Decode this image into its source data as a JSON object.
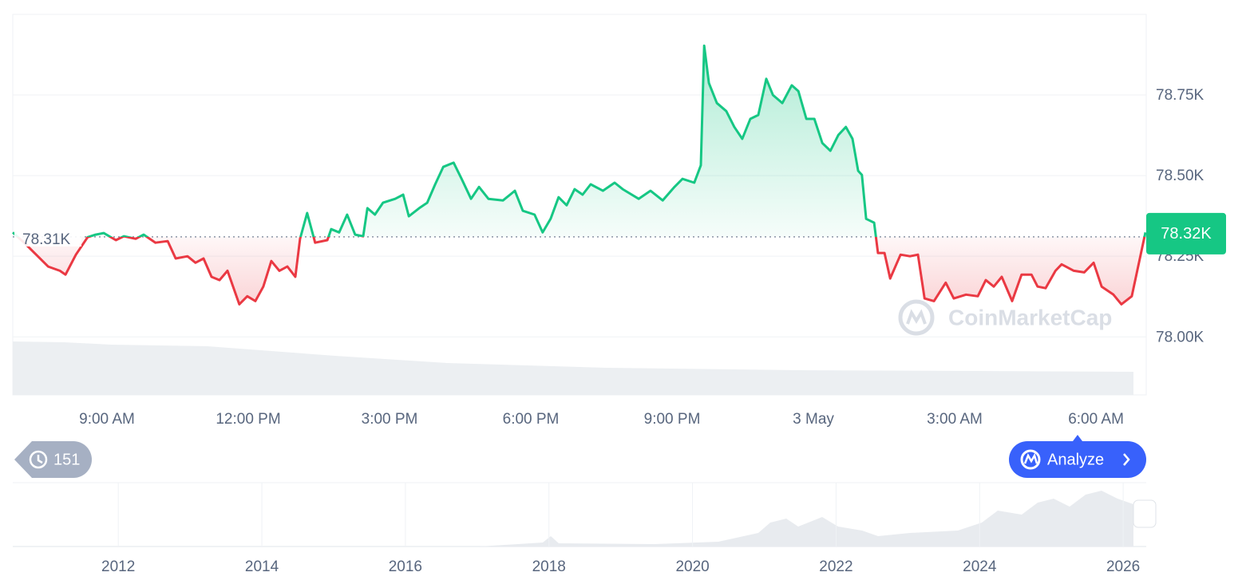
{
  "chart_data": [
    {
      "type": "line",
      "x": [
        0,
        0.24,
        0.75,
        1.0,
        1.12,
        1.34,
        1.59,
        1.76,
        1.93,
        2.19,
        2.36,
        2.61,
        2.78,
        3.03,
        3.29,
        3.46,
        3.71,
        3.88,
        4.05,
        4.22,
        4.39,
        4.56,
        4.81,
        4.98,
        5.15,
        5.32,
        5.49,
        5.66,
        5.83,
        6.0,
        6.1,
        6.25,
        6.42,
        6.68,
        6.76,
        6.93,
        7.1,
        7.27,
        7.44,
        7.53,
        7.69,
        7.86,
        8.12,
        8.29,
        8.41,
        8.63,
        8.8,
        8.97,
        9.14,
        9.36,
        9.53,
        9.73,
        9.9,
        10.1,
        10.41,
        10.66,
        10.83,
        11.08,
        11.25,
        11.42,
        11.59,
        11.76,
        11.93,
        12.1,
        12.27,
        12.53,
        12.78,
        12.95,
        13.29,
        13.54,
        13.8,
        14.05,
        14.22,
        14.47,
        14.61,
        14.68,
        14.78,
        14.95,
        15.15,
        15.32,
        15.49,
        15.66,
        15.83,
        16.0,
        16.14,
        16.34,
        16.54,
        16.68,
        16.85,
        17.02,
        17.19,
        17.36,
        17.53,
        17.69,
        17.83,
        17.95,
        18.03,
        18.12,
        18.29,
        18.37,
        18.51,
        18.63,
        18.85,
        19.05,
        19.22,
        19.36,
        19.56,
        19.81,
        19.98,
        20.24,
        20.49,
        20.66,
        20.83,
        21.0,
        21.22,
        21.42,
        21.63,
        21.76,
        21.93,
        22.14,
        22.27,
        22.53,
        22.75,
        22.95,
        23.12,
        23.37,
        23.54,
        23.76,
        24.05
      ],
      "values": [
        78.324,
        78.292,
        78.218,
        78.205,
        78.193,
        78.255,
        78.309,
        78.317,
        78.322,
        78.3,
        78.312,
        78.304,
        78.317,
        78.292,
        78.297,
        78.243,
        78.25,
        78.23,
        78.243,
        78.186,
        78.176,
        78.205,
        78.101,
        78.126,
        78.111,
        78.156,
        78.235,
        78.205,
        78.218,
        78.186,
        78.304,
        78.384,
        78.292,
        78.3,
        78.334,
        78.324,
        78.379,
        78.317,
        78.312,
        78.399,
        78.379,
        78.416,
        78.428,
        78.441,
        78.374,
        78.399,
        78.416,
        78.473,
        78.527,
        78.54,
        78.49,
        78.428,
        78.465,
        78.428,
        78.423,
        78.453,
        78.391,
        78.379,
        78.324,
        78.366,
        78.433,
        78.408,
        78.458,
        78.441,
        78.473,
        78.453,
        78.478,
        78.458,
        78.428,
        78.453,
        78.423,
        78.465,
        78.49,
        78.478,
        78.532,
        78.903,
        78.787,
        78.725,
        78.7,
        78.651,
        78.614,
        78.676,
        78.688,
        78.8,
        78.75,
        78.725,
        78.78,
        78.762,
        78.676,
        78.676,
        78.601,
        78.577,
        78.626,
        78.651,
        78.614,
        78.515,
        78.502,
        78.366,
        78.354,
        78.26,
        78.26,
        78.181,
        78.255,
        78.25,
        78.255,
        78.119,
        78.111,
        78.168,
        78.119,
        78.131,
        78.126,
        78.176,
        78.156,
        78.186,
        78.111,
        78.193,
        78.193,
        78.156,
        78.151,
        78.205,
        78.225,
        78.205,
        78.2,
        78.23,
        78.156,
        78.131,
        78.101,
        78.126,
        78.324
      ],
      "xlim": [
        0,
        24.05
      ],
      "xticks": [
        {
          "value": 2,
          "label": "9:00 AM"
        },
        {
          "value": 5,
          "label": "12:00 PM"
        },
        {
          "value": 8,
          "label": "3:00 PM"
        },
        {
          "value": 11,
          "label": "6:00 PM"
        },
        {
          "value": 14,
          "label": "9:00 PM"
        },
        {
          "value": 17,
          "label": "3 May"
        },
        {
          "value": 20,
          "label": "3:00 AM"
        },
        {
          "value": 23,
          "label": "6:00 AM"
        }
      ],
      "ylim": [
        77.82,
        79.0
      ],
      "yticks": [
        {
          "value": 78.0,
          "label": "78.00K"
        },
        {
          "value": 78.25,
          "label": "78.25K"
        },
        {
          "value": 78.5,
          "label": "78.50K"
        },
        {
          "value": 78.75,
          "label": "78.75K"
        }
      ],
      "reference": {
        "value": 78.31,
        "label": "78.31K"
      },
      "last_price": {
        "value": 78.32,
        "label": "78.32K"
      },
      "color_up": "#16c784",
      "color_down": "#ea3943",
      "grid": true
    },
    {
      "type": "navigator",
      "xlim": [
        2010.53,
        2026.31
      ],
      "xticks": [
        2012,
        2014,
        2016,
        2018,
        2020,
        2022,
        2024,
        2026
      ]
    }
  ],
  "ui": {
    "history_count": 151,
    "analyze_button": "Analyze",
    "watermark": "CoinMarketCap"
  }
}
